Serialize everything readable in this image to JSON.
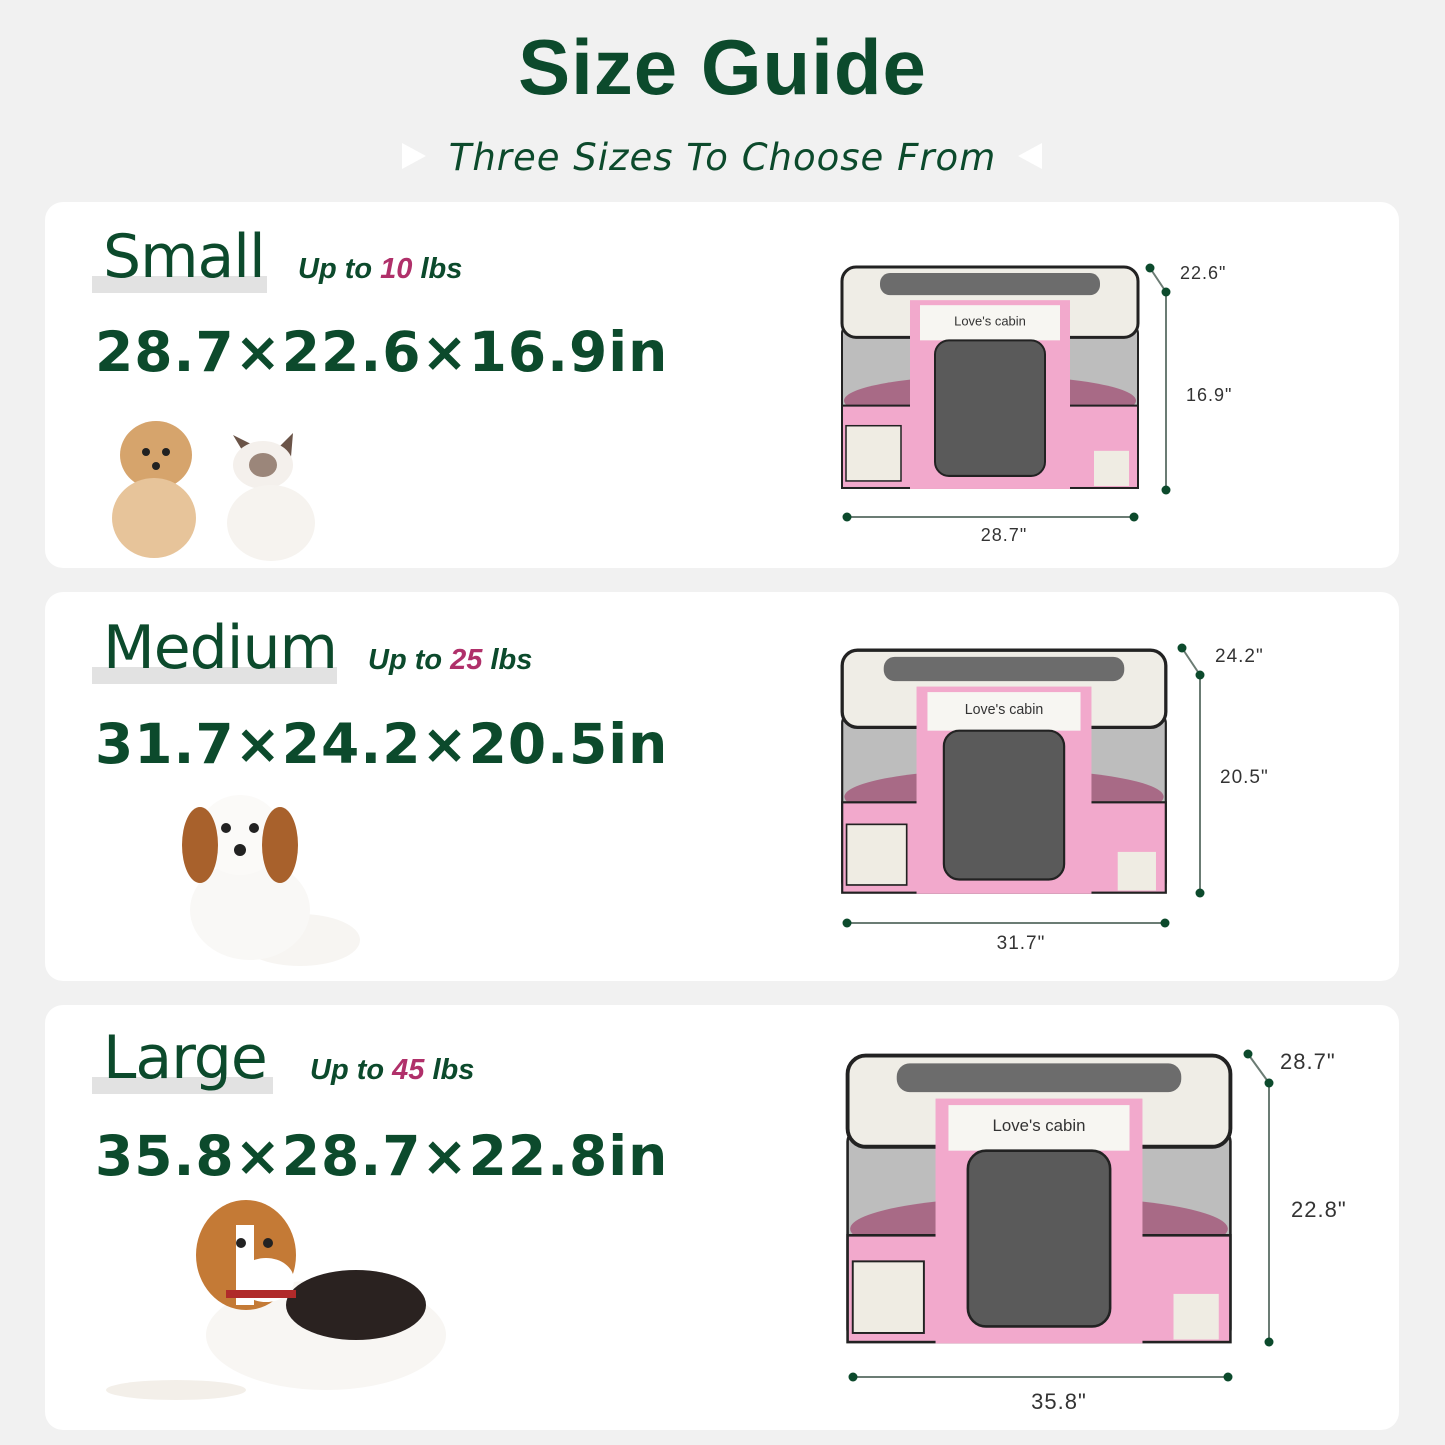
{
  "title": "Size Guide",
  "subtitle": "Three Sizes To Choose From",
  "brand": "Love's cabin",
  "colors": {
    "heading": "#0c4a2c",
    "accent": "#b0306a",
    "pen_pink": "#f2a9cc",
    "pen_cream": "#efede6"
  },
  "sizes": [
    {
      "name": "Small",
      "weight_prefix": "Up to ",
      "weight_value": "10",
      "weight_suffix": " lbs",
      "dimensions": "28.7×22.6×16.9in",
      "width_label": "28.7\"",
      "depth_label": "22.6\"",
      "height_label": "16.9\"",
      "pets": [
        "dog",
        "cat"
      ]
    },
    {
      "name": "Medium",
      "weight_prefix": "Up to ",
      "weight_value": "25",
      "weight_suffix": " lbs",
      "dimensions": "31.7×24.2×20.5in",
      "width_label": "31.7\"",
      "depth_label": "24.2\"",
      "height_label": "20.5\"",
      "pets": [
        "dog"
      ]
    },
    {
      "name": "Large",
      "weight_prefix": "Up to ",
      "weight_value": "45",
      "weight_suffix": " lbs",
      "dimensions": "35.8×28.7×22.8in",
      "width_label": "35.8\"",
      "depth_label": "28.7\"",
      "height_label": "22.8\"",
      "pets": [
        "dog"
      ]
    }
  ]
}
